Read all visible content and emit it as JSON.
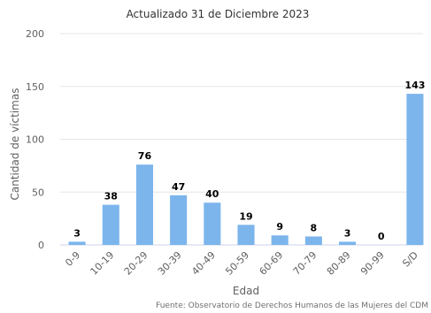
{
  "chart_data": {
    "type": "bar",
    "subtitle": "Actualizado 31 de Diciembre 2023",
    "xlabel": "Edad",
    "ylabel": "Cantidad de víctimas",
    "categories": [
      "0-9",
      "10-19",
      "20-29",
      "30-39",
      "40-49",
      "50-59",
      "60-69",
      "70-79",
      "80-89",
      "90-99",
      "S/D"
    ],
    "values": [
      3,
      38,
      76,
      47,
      40,
      19,
      9,
      8,
      3,
      0,
      143
    ],
    "ylim": [
      0,
      200
    ],
    "yticks": [
      0,
      50,
      100,
      150,
      200
    ],
    "grid": true,
    "legend": "none",
    "bar_color": "#7cb5ec",
    "data_labels": true,
    "credit": "Fuente: Observatorio de Derechos Humanos de las Mujeres del CDM"
  }
}
